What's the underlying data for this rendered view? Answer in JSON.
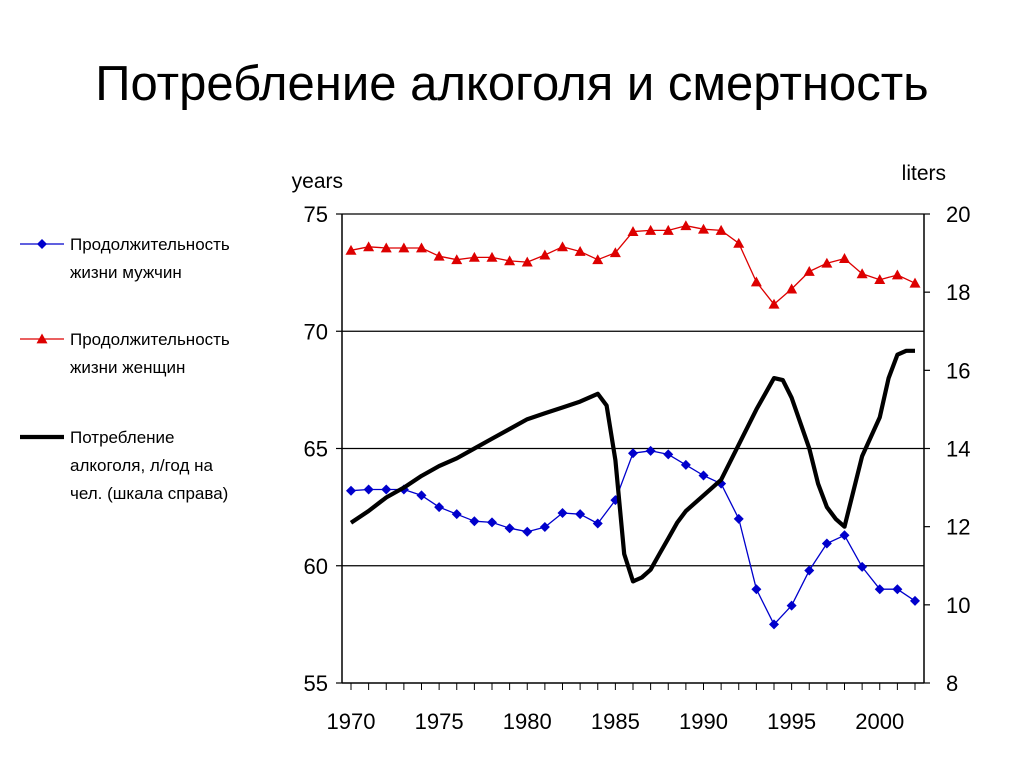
{
  "title": "Потребление алкоголя и смертность",
  "chart_data": {
    "type": "line",
    "title": "Потребление алкоголя и смертность",
    "left_axis": {
      "label": "years",
      "min": 55,
      "max": 75,
      "ticks": [
        55,
        60,
        65,
        70,
        75
      ]
    },
    "right_axis": {
      "label": "liters",
      "min": 8,
      "max": 20,
      "ticks": [
        8,
        10,
        12,
        14,
        16,
        18,
        20
      ]
    },
    "x_axis": {
      "min": 1970,
      "max": 2002,
      "tick_labels": [
        1970,
        1975,
        1980,
        1985,
        1990,
        1995,
        2000
      ]
    },
    "gridlines_at": [
      60,
      65,
      70,
      75
    ],
    "series": [
      {
        "name": "male",
        "legend": [
          "Продолжительность",
          "жизни мужчин"
        ],
        "axis": "left",
        "color": "#0000cc",
        "marker": "diamond",
        "x": [
          1970,
          1971,
          1972,
          1973,
          1974,
          1975,
          1976,
          1977,
          1978,
          1979,
          1980,
          1981,
          1982,
          1983,
          1984,
          1985,
          1986,
          1987,
          1988,
          1989,
          1990,
          1991,
          1992,
          1993,
          1994,
          1995,
          1996,
          1997,
          1998,
          1999,
          2000,
          2001,
          2002
        ],
        "y": [
          63.2,
          63.25,
          63.25,
          63.25,
          63.0,
          62.5,
          62.2,
          61.9,
          61.85,
          61.6,
          61.45,
          61.65,
          62.25,
          62.2,
          61.8,
          62.8,
          64.8,
          64.9,
          64.75,
          64.3,
          63.85,
          63.5,
          62.0,
          59.0,
          57.5,
          58.3,
          59.8,
          60.95,
          61.3,
          59.95,
          59.0,
          59.0,
          58.5
        ]
      },
      {
        "name": "female",
        "legend": [
          "Продолжительность",
          "жизни женщин"
        ],
        "axis": "left",
        "color": "#dd0000",
        "marker": "triangle",
        "x": [
          1970,
          1971,
          1972,
          1973,
          1974,
          1975,
          1976,
          1977,
          1978,
          1979,
          1980,
          1981,
          1982,
          1983,
          1984,
          1985,
          1986,
          1987,
          1988,
          1989,
          1990,
          1991,
          1992,
          1993,
          1994,
          1995,
          1996,
          1997,
          1998,
          1999,
          2000,
          2001,
          2002
        ],
        "y": [
          73.45,
          73.6,
          73.55,
          73.55,
          73.55,
          73.2,
          73.05,
          73.15,
          73.15,
          73.0,
          72.95,
          73.25,
          73.6,
          73.4,
          73.05,
          73.35,
          74.25,
          74.3,
          74.3,
          74.5,
          74.35,
          74.3,
          73.75,
          72.1,
          71.15,
          71.8,
          72.55,
          72.9,
          73.1,
          72.45,
          72.2,
          72.4,
          72.05
        ]
      },
      {
        "name": "alcohol",
        "legend": [
          "Потребление",
          "алкоголя, л/год на",
          "чел. (шкала справа)"
        ],
        "axis": "right",
        "color": "#000000",
        "marker": "none",
        "x": [
          1970,
          1971,
          1972,
          1973,
          1974,
          1975,
          1976,
          1977,
          1978,
          1979,
          1980,
          1981,
          1982,
          1983,
          1984,
          1984.5,
          1985,
          1985.5,
          1986,
          1986.5,
          1987,
          1987.5,
          1988,
          1988.5,
          1989,
          1990,
          1991,
          1992,
          1993,
          1993.5,
          1994,
          1994.5,
          1995,
          1996,
          1996.5,
          1997,
          1997.5,
          1998,
          1998.5,
          1999,
          2000,
          2000.5,
          2001,
          2001.5,
          2002
        ],
        "y": [
          12.1,
          12.4,
          12.75,
          13.0,
          13.3,
          13.55,
          13.75,
          14.0,
          14.25,
          14.5,
          14.75,
          14.9,
          15.05,
          15.2,
          15.4,
          15.1,
          13.7,
          11.3,
          10.6,
          10.7,
          10.9,
          11.3,
          11.7,
          12.1,
          12.4,
          12.8,
          13.2,
          14.1,
          15.0,
          15.4,
          15.8,
          15.75,
          15.3,
          14.0,
          13.1,
          12.5,
          12.2,
          12.0,
          12.9,
          13.8,
          14.8,
          15.8,
          16.4,
          16.5,
          16.5
        ]
      }
    ]
  }
}
